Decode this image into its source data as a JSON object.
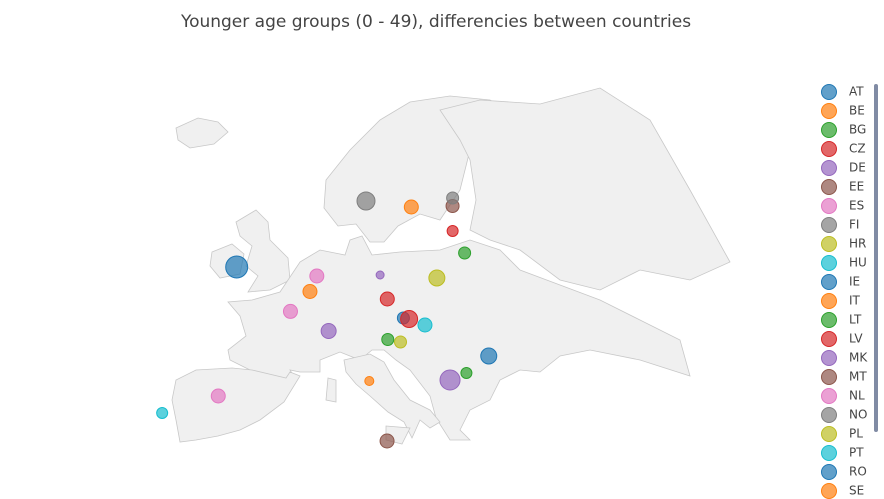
{
  "chart_data": {
    "type": "scattergeo",
    "title": "Younger age groups (0 - 49), differencies between countries",
    "series": [
      {
        "name": "AT",
        "color": "#1f77b4",
        "lon": 16.4,
        "lat": 48.2,
        "size": 12
      },
      {
        "name": "BE",
        "color": "#ff7f0e",
        "lon": 4.35,
        "lat": 50.85,
        "size": 14
      },
      {
        "name": "BG",
        "color": "#2ca02c",
        "lon": 23.3,
        "lat": 42.7,
        "size": 11
      },
      {
        "name": "CZ",
        "color": "#d62728",
        "lon": 14.4,
        "lat": 50.1,
        "size": 14
      },
      {
        "name": "DE",
        "color": "#9467bd",
        "lon": 13.4,
        "lat": 52.5,
        "size": 8
      },
      {
        "name": "EE",
        "color": "#8c564b",
        "lon": 24.75,
        "lat": 59.4,
        "size": 13
      },
      {
        "name": "ES",
        "color": "#e377c2",
        "lon": -3.7,
        "lat": 40.4,
        "size": 14
      },
      {
        "name": "FI",
        "color": "#7f7f7f",
        "lon": 25.0,
        "lat": 60.2,
        "size": 12
      },
      {
        "name": "HR",
        "color": "#bcbd22",
        "lon": 16.0,
        "lat": 45.8,
        "size": 12
      },
      {
        "name": "HU",
        "color": "#17becf",
        "lon": 19.0,
        "lat": 47.5,
        "size": 14
      },
      {
        "name": "IE",
        "color": "#1f77b4",
        "lon": -6.3,
        "lat": 53.3,
        "size": 22
      },
      {
        "name": "IT",
        "color": "#ff7f0e",
        "lon": 12.5,
        "lat": 41.9,
        "size": 9
      },
      {
        "name": "LT",
        "color": "#2ca02c",
        "lon": 25.3,
        "lat": 54.7,
        "size": 12
      },
      {
        "name": "LV",
        "color": "#d62728",
        "lon": 24.1,
        "lat": 56.9,
        "size": 11
      },
      {
        "name": "MK",
        "color": "#9467bd",
        "lon": 21.4,
        "lat": 42.0,
        "size": 20
      },
      {
        "name": "MT",
        "color": "#8c564b",
        "lon": 14.5,
        "lat": 35.9,
        "size": 14
      },
      {
        "name": "NL",
        "color": "#e377c2",
        "lon": 4.9,
        "lat": 52.4,
        "size": 14
      },
      {
        "name": "NO",
        "color": "#7f7f7f",
        "lon": 10.75,
        "lat": 59.9,
        "size": 18
      },
      {
        "name": "PL",
        "color": "#bcbd22",
        "lon": 21.0,
        "lat": 52.2,
        "size": 16
      },
      {
        "name": "PT",
        "color": "#17becf",
        "lon": -9.14,
        "lat": 38.7,
        "size": 11
      },
      {
        "name": "RO",
        "color": "#1f77b4",
        "lon": 26.1,
        "lat": 44.4,
        "size": 16
      },
      {
        "name": "SE",
        "color": "#ff7f0e",
        "lon": 18.1,
        "lat": 59.3,
        "size": 14
      },
      {
        "name": null,
        "color": "#2ca02c",
        "lon": 14.5,
        "lat": 46.05,
        "size": 12
      },
      {
        "name": null,
        "color": "#d62728",
        "lon": 17.1,
        "lat": 48.1,
        "size": 17
      },
      {
        "name": null,
        "color": "#9467bd",
        "lon": 7.4,
        "lat": 46.9,
        "size": 15
      },
      {
        "name": null,
        "color": "#e377c2",
        "lon": 2.35,
        "lat": 48.86,
        "size": 14
      }
    ]
  }
}
